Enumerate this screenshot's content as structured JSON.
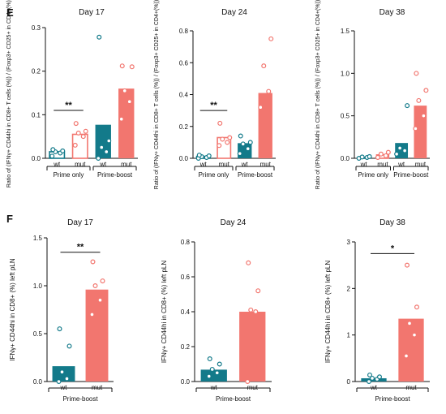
{
  "panels": {
    "E": "E",
    "F": "F"
  },
  "colors": {
    "wt": "#137a8a",
    "mut": "#f2766f",
    "axis": "#111111"
  },
  "chart_data": [
    {
      "type": "bar",
      "panel": "E",
      "title": "Day 17",
      "ylabel": "Ratio of (IFNγ+ CD44hi in CD8+ T cells (%)) / (Foxp3+ CD25+ in CD4+(%))",
      "ylim": [
        0,
        0.3
      ],
      "yticks": [
        "0.0",
        "0.1",
        "0.2",
        "0.3"
      ],
      "ytick_values": [
        0,
        0.1,
        0.2,
        0.3
      ],
      "categories": [
        "wt",
        "mut",
        "wt",
        "mut"
      ],
      "groups": [
        {
          "label": "Prime only",
          "span": [
            0,
            1
          ]
        },
        {
          "label": "Prime-boost",
          "span": [
            2,
            3
          ]
        }
      ],
      "bars": [
        {
          "category": "wt",
          "group": "Prime only",
          "style": "outline",
          "color": "wt",
          "value": 0.015,
          "points": [
            0.005,
            0.012,
            0.015,
            0.017,
            0.02
          ]
        },
        {
          "category": "mut",
          "group": "Prime only",
          "style": "outline",
          "color": "mut",
          "value": 0.055,
          "points": [
            0.03,
            0.05,
            0.058,
            0.062,
            0.08
          ]
        },
        {
          "category": "wt",
          "group": "Prime-boost",
          "style": "filled",
          "color": "wt",
          "value": 0.077,
          "points": [
            0.0,
            0.015,
            0.025,
            0.04,
            0.278
          ]
        },
        {
          "category": "mut",
          "group": "Prime-boost",
          "style": "filled",
          "color": "mut",
          "value": 0.16,
          "points": [
            0.09,
            0.13,
            0.155,
            0.21,
            0.212
          ]
        }
      ],
      "annotations": [
        {
          "text": "**",
          "between": [
            0,
            1
          ],
          "y": 0.11
        }
      ]
    },
    {
      "type": "bar",
      "panel": "E",
      "title": "Day 24",
      "ylabel": "Ratio of (IFNγ+ CD44hi in CD8+ T cells (%)) / (Foxp3+ CD25+ in CD4+(%))",
      "ylim": [
        0,
        0.8
      ],
      "yticks": [
        "0.0",
        "0.2",
        "0.4",
        "0.6",
        "0.8"
      ],
      "ytick_values": [
        0,
        0.2,
        0.4,
        0.6,
        0.8
      ],
      "categories": [
        "wt",
        "mut",
        "wt",
        "mut"
      ],
      "groups": [
        {
          "label": "Prime only",
          "span": [
            0,
            1
          ]
        },
        {
          "label": "Prime-boost",
          "span": [
            2,
            3
          ]
        }
      ],
      "bars": [
        {
          "category": "wt",
          "group": "Prime only",
          "style": "outline",
          "color": "wt",
          "value": 0.012,
          "points": [
            0.0,
            0.005,
            0.01,
            0.015,
            0.02
          ]
        },
        {
          "category": "mut",
          "group": "Prime only",
          "style": "outline",
          "color": "mut",
          "value": 0.13,
          "points": [
            0.08,
            0.1,
            0.12,
            0.13,
            0.22
          ]
        },
        {
          "category": "wt",
          "group": "Prime-boost",
          "style": "filled",
          "color": "wt",
          "value": 0.095,
          "points": [
            0.03,
            0.06,
            0.09,
            0.1,
            0.14
          ]
        },
        {
          "category": "mut",
          "group": "Prime-boost",
          "style": "filled",
          "color": "mut",
          "value": 0.41,
          "points": [
            0.32,
            0.42,
            0.58,
            0.75
          ]
        }
      ],
      "annotations": [
        {
          "text": "**",
          "between": [
            0,
            1
          ],
          "y": 0.3
        }
      ]
    },
    {
      "type": "bar",
      "panel": "E",
      "title": "Day 38",
      "ylabel": "Ratio of (IFNγ+ CD44hi in CD8+ T cells (%)) / (Foxp3+ CD25+ in CD4+(%))",
      "ylim": [
        0,
        1.5
      ],
      "yticks": [
        "0.0",
        "0.5",
        "1.0",
        "1.5"
      ],
      "ytick_values": [
        0,
        0.5,
        1.0,
        1.5
      ],
      "categories": [
        "wt",
        "mut",
        "wt",
        "mut"
      ],
      "groups": [
        {
          "label": "Prime only",
          "span": [
            0,
            1
          ]
        },
        {
          "label": "Prime-boost",
          "span": [
            2,
            3
          ]
        }
      ],
      "bars": [
        {
          "category": "wt",
          "group": "Prime only",
          "style": "outline",
          "color": "wt",
          "value": 0.01,
          "points": [
            0.0,
            0.01,
            0.015,
            0.02
          ]
        },
        {
          "category": "mut",
          "group": "Prime only",
          "style": "outline",
          "color": "mut",
          "value": 0.04,
          "points": [
            0.01,
            0.03,
            0.05,
            0.07
          ]
        },
        {
          "category": "wt",
          "group": "Prime-boost",
          "style": "filled",
          "color": "wt",
          "value": 0.18,
          "points": [
            0.05,
            0.09,
            0.12,
            0.62
          ]
        },
        {
          "category": "mut",
          "group": "Prime-boost",
          "style": "filled",
          "color": "mut",
          "value": 0.62,
          "points": [
            0.35,
            0.5,
            0.68,
            0.8,
            1.0
          ]
        }
      ],
      "annotations": []
    },
    {
      "type": "bar",
      "panel": "F",
      "title": "Day 17",
      "ylabel": "IFNγ+ CD44hi in CD8+ (%) left pLN",
      "ylim": [
        0,
        1.5
      ],
      "yticks": [
        "0.0",
        "0.5",
        "1.0",
        "1.5"
      ],
      "ytick_values": [
        0,
        0.5,
        1.0,
        1.5
      ],
      "categories": [
        "wt",
        "mut"
      ],
      "groups": [
        {
          "label": "Prime-boost",
          "span": [
            0,
            1
          ]
        }
      ],
      "bars": [
        {
          "category": "wt",
          "group": "Prime-boost",
          "style": "filled",
          "color": "wt",
          "value": 0.16,
          "points": [
            0.0,
            0.03,
            0.1,
            0.37,
            0.55
          ]
        },
        {
          "category": "mut",
          "group": "Prime-boost",
          "style": "filled",
          "color": "mut",
          "value": 0.96,
          "points": [
            0.7,
            0.85,
            1.0,
            1.05,
            1.25
          ]
        }
      ],
      "annotations": [
        {
          "text": "**",
          "between": [
            0,
            1
          ],
          "y": 1.35
        }
      ]
    },
    {
      "type": "bar",
      "panel": "F",
      "title": "Day 24",
      "ylabel": "IFNγ+ CD44hi in CD8+ (%) left pLN",
      "ylim": [
        0,
        0.8
      ],
      "yticks": [
        "0.0",
        "0.2",
        "0.4",
        "0.6",
        "0.8"
      ],
      "ytick_values": [
        0,
        0.2,
        0.4,
        0.6,
        0.8
      ],
      "categories": [
        "wt",
        "mut"
      ],
      "groups": [
        {
          "label": "Prime-boost",
          "span": [
            0,
            1
          ]
        }
      ],
      "bars": [
        {
          "category": "wt",
          "group": "Prime-boost",
          "style": "filled",
          "color": "wt",
          "value": 0.068,
          "points": [
            0.03,
            0.05,
            0.07,
            0.1,
            0.13
          ]
        },
        {
          "category": "mut",
          "group": "Prime-boost",
          "style": "filled",
          "color": "mut",
          "value": 0.4,
          "points": [
            0.0,
            0.4,
            0.41,
            0.52,
            0.68
          ]
        }
      ],
      "annotations": []
    },
    {
      "type": "bar",
      "panel": "F",
      "title": "Day 38",
      "ylabel": "IFNγ+ CD44hi in CD8+ (%) left pLN",
      "ylim": [
        0,
        3
      ],
      "yticks": [
        "0",
        "1",
        "2",
        "3"
      ],
      "ytick_values": [
        0,
        1,
        2,
        3
      ],
      "categories": [
        "wt",
        "mut"
      ],
      "groups": [
        {
          "label": "Prime-boost",
          "span": [
            0,
            1
          ]
        }
      ],
      "bars": [
        {
          "category": "wt",
          "group": "Prime-boost",
          "style": "filled",
          "color": "wt",
          "value": 0.07,
          "points": [
            0.0,
            0.05,
            0.07,
            0.1,
            0.14
          ]
        },
        {
          "category": "mut",
          "group": "Prime-boost",
          "style": "filled",
          "color": "mut",
          "value": 1.35,
          "points": [
            0.55,
            1.0,
            1.25,
            1.6,
            2.5
          ]
        }
      ],
      "annotations": [
        {
          "text": "*",
          "between": [
            0,
            1
          ],
          "y": 2.75
        }
      ]
    }
  ]
}
